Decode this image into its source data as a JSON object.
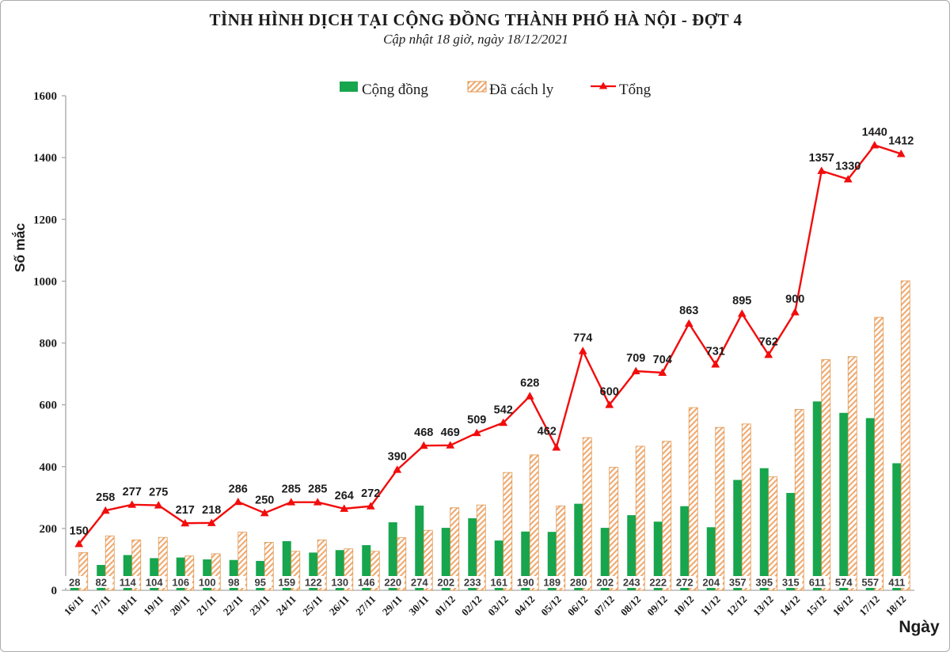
{
  "colors": {
    "green": "#17A54E",
    "orange_stripe": "#EFA86E",
    "orange_border": "#E0964E",
    "red": "#F20C0C",
    "label_dark": "#3B3B3B",
    "axis_gray": "#A6A6A6",
    "title_black": "#1C1C1C"
  },
  "chart_data": {
    "type": "combo_bar_line",
    "title": "TÌNH HÌNH DỊCH TẠI CỘNG ĐỒNG THÀNH PHỐ HÀ NỘI - ĐỢT 4",
    "subtitle": "Cập nhật 18 giờ, ngày 18/12/2021",
    "xlabel": "Ngày",
    "ylabel": "Số mắc",
    "ylim": [
      0,
      1600
    ],
    "y_ticks": [
      0,
      200,
      400,
      600,
      800,
      1000,
      1200,
      1400,
      1600
    ],
    "grid": false,
    "legend_position": "top",
    "categories": [
      "16/11",
      "17/11",
      "18/11",
      "19/11",
      "20/11",
      "21/11",
      "22/11",
      "23/11",
      "24/11",
      "25/11",
      "26/11",
      "27/11",
      "29/11",
      "30/11",
      "01/12",
      "02/12",
      "03/12",
      "04/12",
      "05/12",
      "06/12",
      "07/12",
      "08/12",
      "09/12",
      "10/12",
      "11/12",
      "12/12",
      "13/12",
      "14/12",
      "15/12",
      "16/12",
      "17/12",
      "18/12"
    ],
    "series": [
      {
        "name": "Cộng đồng",
        "type": "bar",
        "style": "solid-green",
        "values": [
          28,
          82,
          114,
          104,
          106,
          100,
          98,
          95,
          159,
          122,
          130,
          146,
          220,
          274,
          202,
          233,
          161,
          190,
          189,
          280,
          202,
          243,
          222,
          272,
          204,
          357,
          395,
          315,
          611,
          574,
          557,
          411
        ]
      },
      {
        "name": "Đã cách ly",
        "type": "bar",
        "style": "diagonal-hatch-orange",
        "values": [
          122,
          176,
          163,
          171,
          111,
          118,
          188,
          155,
          126,
          163,
          134,
          126,
          170,
          194,
          267,
          276,
          381,
          438,
          273,
          494,
          398,
          466,
          482,
          591,
          527,
          538,
          367,
          585,
          746,
          756,
          883,
          1001
        ]
      },
      {
        "name": "Tổng",
        "type": "line",
        "marker": "triangle-up",
        "values": [
          150,
          258,
          277,
          275,
          217,
          218,
          286,
          250,
          285,
          285,
          264,
          272,
          390,
          468,
          469,
          509,
          542,
          628,
          462,
          774,
          600,
          709,
          704,
          863,
          731,
          895,
          762,
          900,
          1357,
          1330,
          1440,
          1412
        ]
      }
    ]
  }
}
